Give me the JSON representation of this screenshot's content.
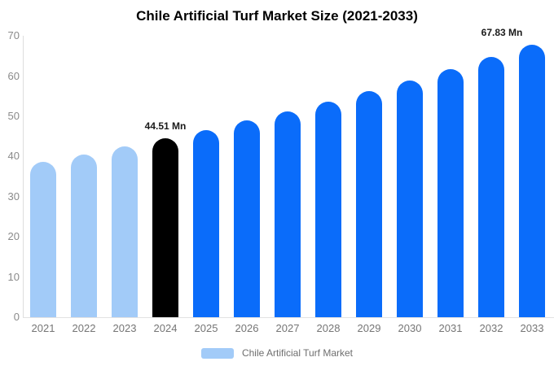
{
  "title": "Chile Artificial Turf Market Size (2021-2033)",
  "legend": {
    "label": "Chile Artificial Turf Market",
    "swatch_color": "#a2cbf8"
  },
  "colors": {
    "light_blue": "#a2cbf8",
    "blue": "#0a6cfa",
    "highlight_black": "#000000",
    "axis_line": "#dddddd",
    "tick_text": "#8a8a8a",
    "category_text": "#757575",
    "data_label_text": "#1a1a1a"
  },
  "chart_data": {
    "type": "bar",
    "title": "Chile Artificial Turf Market Size (2021-2033)",
    "xlabel": "",
    "ylabel": "",
    "unit": "Mn",
    "ylim": [
      0,
      70
    ],
    "yticks": [
      0,
      10,
      20,
      30,
      40,
      50,
      60,
      70
    ],
    "grid": false,
    "legend_position": "bottom",
    "categories": [
      "2021",
      "2022",
      "2023",
      "2024",
      "2025",
      "2026",
      "2027",
      "2028",
      "2029",
      "2030",
      "2031",
      "2032",
      "2033"
    ],
    "values": [
      38.7,
      40.5,
      42.5,
      44.51,
      46.6,
      48.9,
      51.2,
      53.7,
      56.2,
      58.9,
      61.8,
      64.7,
      67.83
    ],
    "bar_colors": [
      "#a2cbf8",
      "#a2cbf8",
      "#a2cbf8",
      "#000000",
      "#0a6cfa",
      "#0a6cfa",
      "#0a6cfa",
      "#0a6cfa",
      "#0a6cfa",
      "#0a6cfa",
      "#0a6cfa",
      "#0a6cfa",
      "#0a6cfa"
    ],
    "data_labels": [
      null,
      null,
      null,
      "44.51 Mn",
      null,
      null,
      null,
      null,
      null,
      null,
      null,
      null,
      "67.83 Mn"
    ]
  }
}
